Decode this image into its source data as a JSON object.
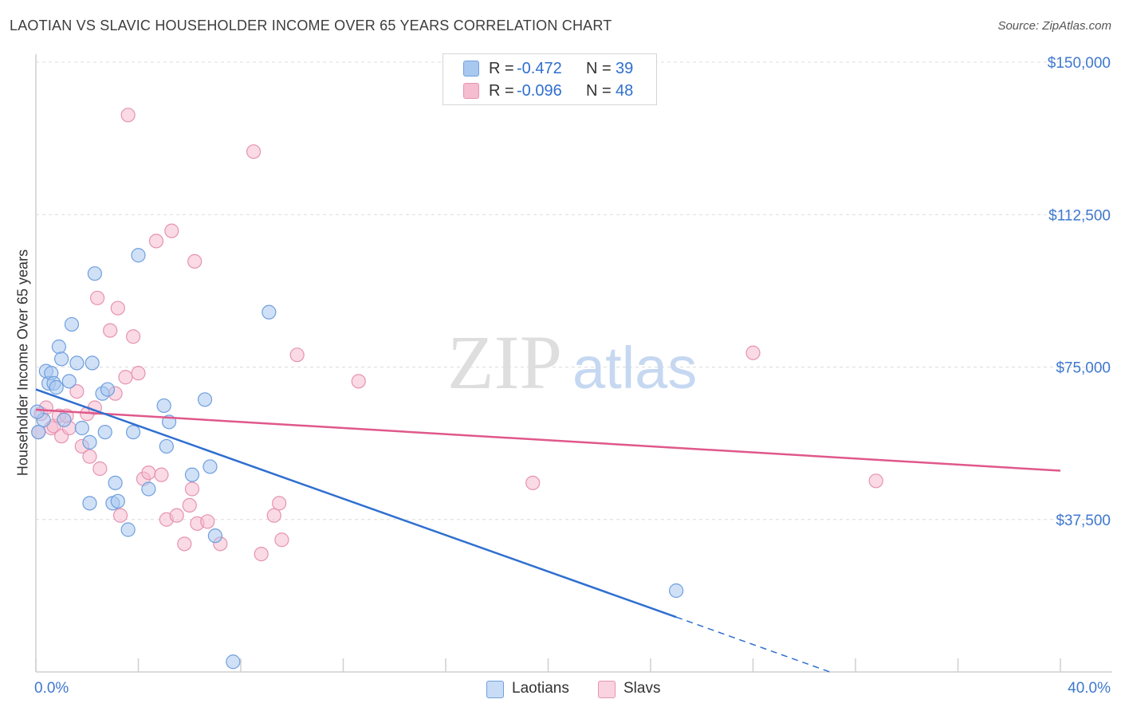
{
  "title": "LAOTIAN VS SLAVIC HOUSEHOLDER INCOME OVER 65 YEARS CORRELATION CHART",
  "source": "Source: ZipAtlas.com",
  "watermark": {
    "zip": "ZIP",
    "atlas": "atlas"
  },
  "colors": {
    "laotians_fill": "#a9c8f0",
    "laotians_stroke": "#6f9fde",
    "laotians_line": "#2f6fd0",
    "slavs_fill": "#f6bcd0",
    "slavs_stroke": "#e693b1",
    "slavs_line": "#e0588a",
    "axis_label": "#3f78cf",
    "grid": "#dcdcdc"
  },
  "legend": {
    "laotians": {
      "r_label": "R =",
      "r_value": "-0.472",
      "n_label": "N =",
      "n_value": "39"
    },
    "slavs": {
      "r_label": "R =",
      "r_value": "-0.096",
      "n_label": "N =",
      "n_value": "48"
    }
  },
  "chart_data": {
    "type": "scatter",
    "title": "LAOTIAN VS SLAVIC HOUSEHOLDER INCOME OVER 65 YEARS CORRELATION CHART",
    "xlabel": "",
    "ylabel": "Householder Income Over 65 years",
    "xlim": [
      0,
      40
    ],
    "ylim": [
      0,
      150000
    ],
    "x_tick_labels": [
      "0.0%",
      "40.0%"
    ],
    "y_ticks": [
      37500,
      75000,
      112500,
      150000
    ],
    "y_tick_labels": [
      "$37,500",
      "$75,000",
      "$112,500",
      "$150,000"
    ],
    "legend_position": "top-center",
    "grid": true,
    "series": [
      {
        "name": "Laotians",
        "points": [
          [
            0.1,
            59000
          ],
          [
            0.3,
            62000
          ],
          [
            0.4,
            74000
          ],
          [
            0.5,
            71000
          ],
          [
            0.6,
            73500
          ],
          [
            0.7,
            71000
          ],
          [
            0.8,
            70000
          ],
          [
            0.9,
            80000
          ],
          [
            1.0,
            77000
          ],
          [
            1.1,
            62000
          ],
          [
            1.3,
            71500
          ],
          [
            1.4,
            85500
          ],
          [
            1.6,
            76000
          ],
          [
            1.8,
            60000
          ],
          [
            2.1,
            56500
          ],
          [
            2.2,
            76000
          ],
          [
            2.3,
            98000
          ],
          [
            2.6,
            68500
          ],
          [
            2.7,
            59000
          ],
          [
            2.8,
            69500
          ],
          [
            2.1,
            41500
          ],
          [
            3.0,
            41500
          ],
          [
            3.1,
            46500
          ],
          [
            3.2,
            42000
          ],
          [
            3.6,
            35000
          ],
          [
            3.8,
            59000
          ],
          [
            4.0,
            102500
          ],
          [
            4.4,
            45000
          ],
          [
            5.0,
            65500
          ],
          [
            5.1,
            55500
          ],
          [
            5.2,
            61500
          ],
          [
            6.1,
            48500
          ],
          [
            6.6,
            67000
          ],
          [
            6.8,
            50500
          ],
          [
            7.0,
            33500
          ],
          [
            7.7,
            2500
          ],
          [
            9.1,
            88500
          ],
          [
            25.0,
            20000
          ],
          [
            0.05,
            64000
          ]
        ]
      },
      {
        "name": "Slavs",
        "points": [
          [
            0.1,
            59000
          ],
          [
            0.2,
            63500
          ],
          [
            0.4,
            65000
          ],
          [
            0.6,
            60000
          ],
          [
            0.7,
            60500
          ],
          [
            0.9,
            63000
          ],
          [
            1.0,
            58000
          ],
          [
            1.2,
            63000
          ],
          [
            1.3,
            60000
          ],
          [
            1.6,
            69000
          ],
          [
            1.8,
            55500
          ],
          [
            2.0,
            63500
          ],
          [
            2.1,
            53000
          ],
          [
            2.3,
            65000
          ],
          [
            2.4,
            92000
          ],
          [
            2.5,
            50000
          ],
          [
            2.9,
            84000
          ],
          [
            3.1,
            68500
          ],
          [
            3.2,
            89500
          ],
          [
            3.3,
            38500
          ],
          [
            3.5,
            72500
          ],
          [
            3.6,
            137000
          ],
          [
            3.8,
            82500
          ],
          [
            4.0,
            73500
          ],
          [
            4.2,
            47500
          ],
          [
            4.4,
            49000
          ],
          [
            4.7,
            106000
          ],
          [
            4.9,
            48500
          ],
          [
            5.1,
            37500
          ],
          [
            5.3,
            108500
          ],
          [
            5.5,
            38500
          ],
          [
            5.8,
            31500
          ],
          [
            6.0,
            41000
          ],
          [
            6.1,
            45000
          ],
          [
            6.2,
            101000
          ],
          [
            6.3,
            36500
          ],
          [
            6.7,
            37000
          ],
          [
            7.2,
            31500
          ],
          [
            8.5,
            128000
          ],
          [
            8.8,
            29000
          ],
          [
            9.3,
            38500
          ],
          [
            9.5,
            41500
          ],
          [
            9.6,
            32500
          ],
          [
            10.2,
            78000
          ],
          [
            12.6,
            71500
          ],
          [
            19.4,
            46500
          ],
          [
            28.0,
            78500
          ],
          [
            32.8,
            47000
          ]
        ]
      }
    ],
    "trend_lines": [
      {
        "series": "Laotians",
        "x": [
          0,
          25
        ],
        "y": [
          69500,
          13500
        ],
        "dashed_extension_to": [
          31,
          0
        ]
      },
      {
        "series": "Slavs",
        "x": [
          0,
          40
        ],
        "y": [
          64500,
          49500
        ]
      }
    ]
  },
  "bottom_legend": [
    "Laotians",
    "Slavs"
  ]
}
